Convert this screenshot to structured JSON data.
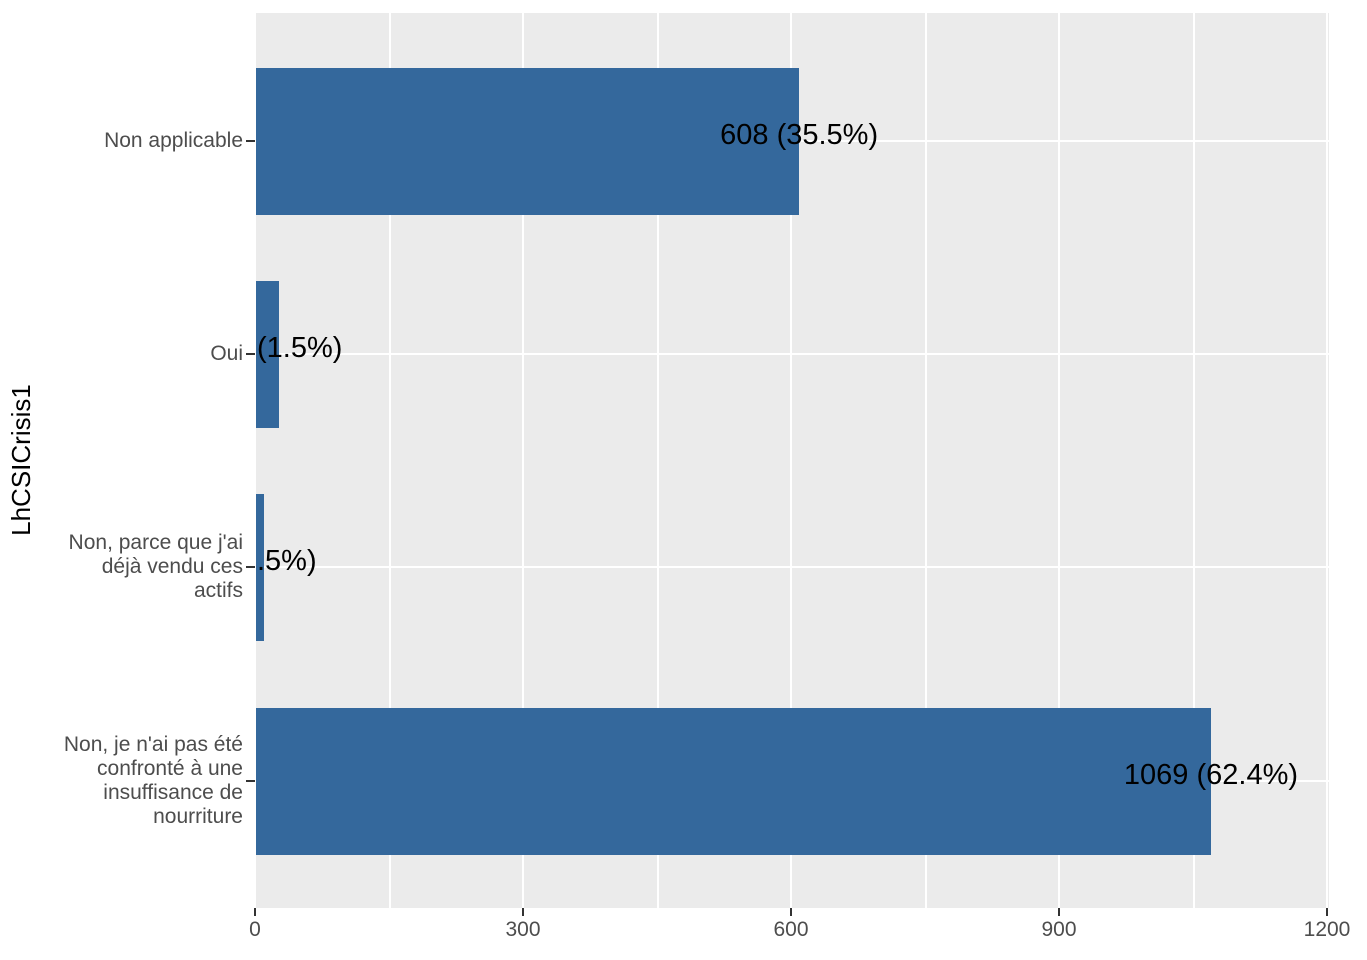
{
  "chart_data": {
    "type": "bar",
    "orientation": "horizontal",
    "title": "",
    "xlabel": "",
    "ylabel": "LhCSICrisis1",
    "categories": [
      "Non applicable",
      "Oui",
      "Non, parce que j'ai\ndéjà vendu ces\nactifs",
      "Non, je n'ai pas été\nconfronté à une\ninsuffisance de\nnourriture"
    ],
    "values": [
      608,
      26,
      9,
      1069
    ],
    "percentages": [
      35.5,
      1.5,
      0.5,
      62.4
    ],
    "bar_labels": [
      "608 (35.5%)",
      "(1.5%)",
      ".5%)",
      "1069 (62.4%)"
    ],
    "label_anchor": [
      "end-center",
      "panel-left",
      "panel-left",
      "end-center"
    ],
    "x_ticks": [
      "0",
      "300",
      "600",
      "900",
      "1200"
    ],
    "x_minor_ticks": [
      150,
      450,
      750,
      1050
    ],
    "xlim": [
      0,
      1200
    ],
    "grid": "on",
    "legend_position": "none",
    "bar_color": "#34689C",
    "panel_bg": "#EBEBEB",
    "grid_color": "#FFFFFF",
    "axis_text_color": "#4D4D4D",
    "label_text_color": "#000000"
  }
}
